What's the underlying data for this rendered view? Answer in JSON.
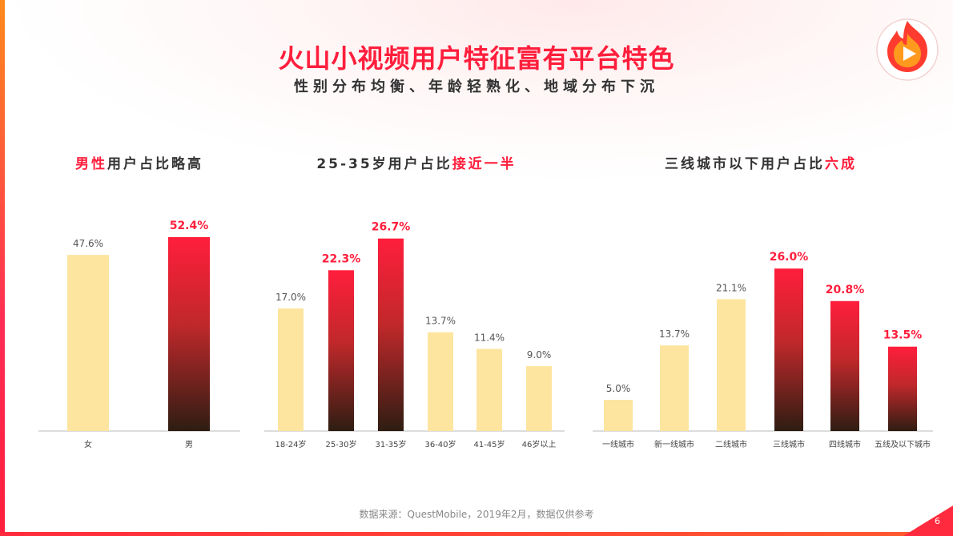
{
  "header": {
    "title": "火山小视频用户特征富有平台特色",
    "subtitle": "性别分布均衡、年龄轻熟化、地域分布下沉"
  },
  "logo": {
    "icon": "play-flame-icon"
  },
  "colors": {
    "accent": "#ff1e3c",
    "pale_bar": "#fde5a0",
    "dark_bar_bottom": "#2e1d12",
    "text": "#333333"
  },
  "chart_data": [
    {
      "type": "bar",
      "title_plain": "用户占比略高",
      "title_highlight": "男性",
      "title_order": "highlight-first",
      "categories": [
        "女",
        "男"
      ],
      "values": [
        47.6,
        52.4
      ],
      "labels": [
        "47.6%",
        "52.4%"
      ],
      "highlighted": [
        false,
        true
      ],
      "ylim": [
        0,
        60
      ],
      "xlabel": "",
      "ylabel": ""
    },
    {
      "type": "bar",
      "title_plain": "25-35岁用户占比",
      "title_highlight": "接近一半",
      "title_order": "plain-first",
      "categories": [
        "18-24岁",
        "25-30岁",
        "31-35岁",
        "36-40岁",
        "41-45岁",
        "46岁以上"
      ],
      "values": [
        17.0,
        22.3,
        26.7,
        13.7,
        11.4,
        9.0
      ],
      "labels": [
        "17.0%",
        "22.3%",
        "26.7%",
        "13.7%",
        "11.4%",
        "9.0%"
      ],
      "highlighted": [
        false,
        true,
        true,
        false,
        false,
        false
      ],
      "ylim": [
        0,
        30
      ],
      "xlabel": "",
      "ylabel": ""
    },
    {
      "type": "bar",
      "title_plain": "三线城市以下用户占比",
      "title_highlight": "六成",
      "title_order": "plain-first",
      "categories": [
        "一线城市",
        "新一线城市",
        "二线城市",
        "三线城市",
        "四线城市",
        "五线及以下城市"
      ],
      "values": [
        5.0,
        13.7,
        21.1,
        26.0,
        20.8,
        13.5
      ],
      "labels": [
        "5.0%",
        "13.7%",
        "21.1%",
        "26.0%",
        "20.8%",
        "13.5%"
      ],
      "highlighted": [
        false,
        false,
        false,
        true,
        true,
        true
      ],
      "ylim": [
        0,
        30
      ],
      "xlabel": "",
      "ylabel": ""
    }
  ],
  "footer": {
    "source": "数据来源：QuestMobile，2019年2月，数据仅供参考",
    "page_number": "6"
  }
}
